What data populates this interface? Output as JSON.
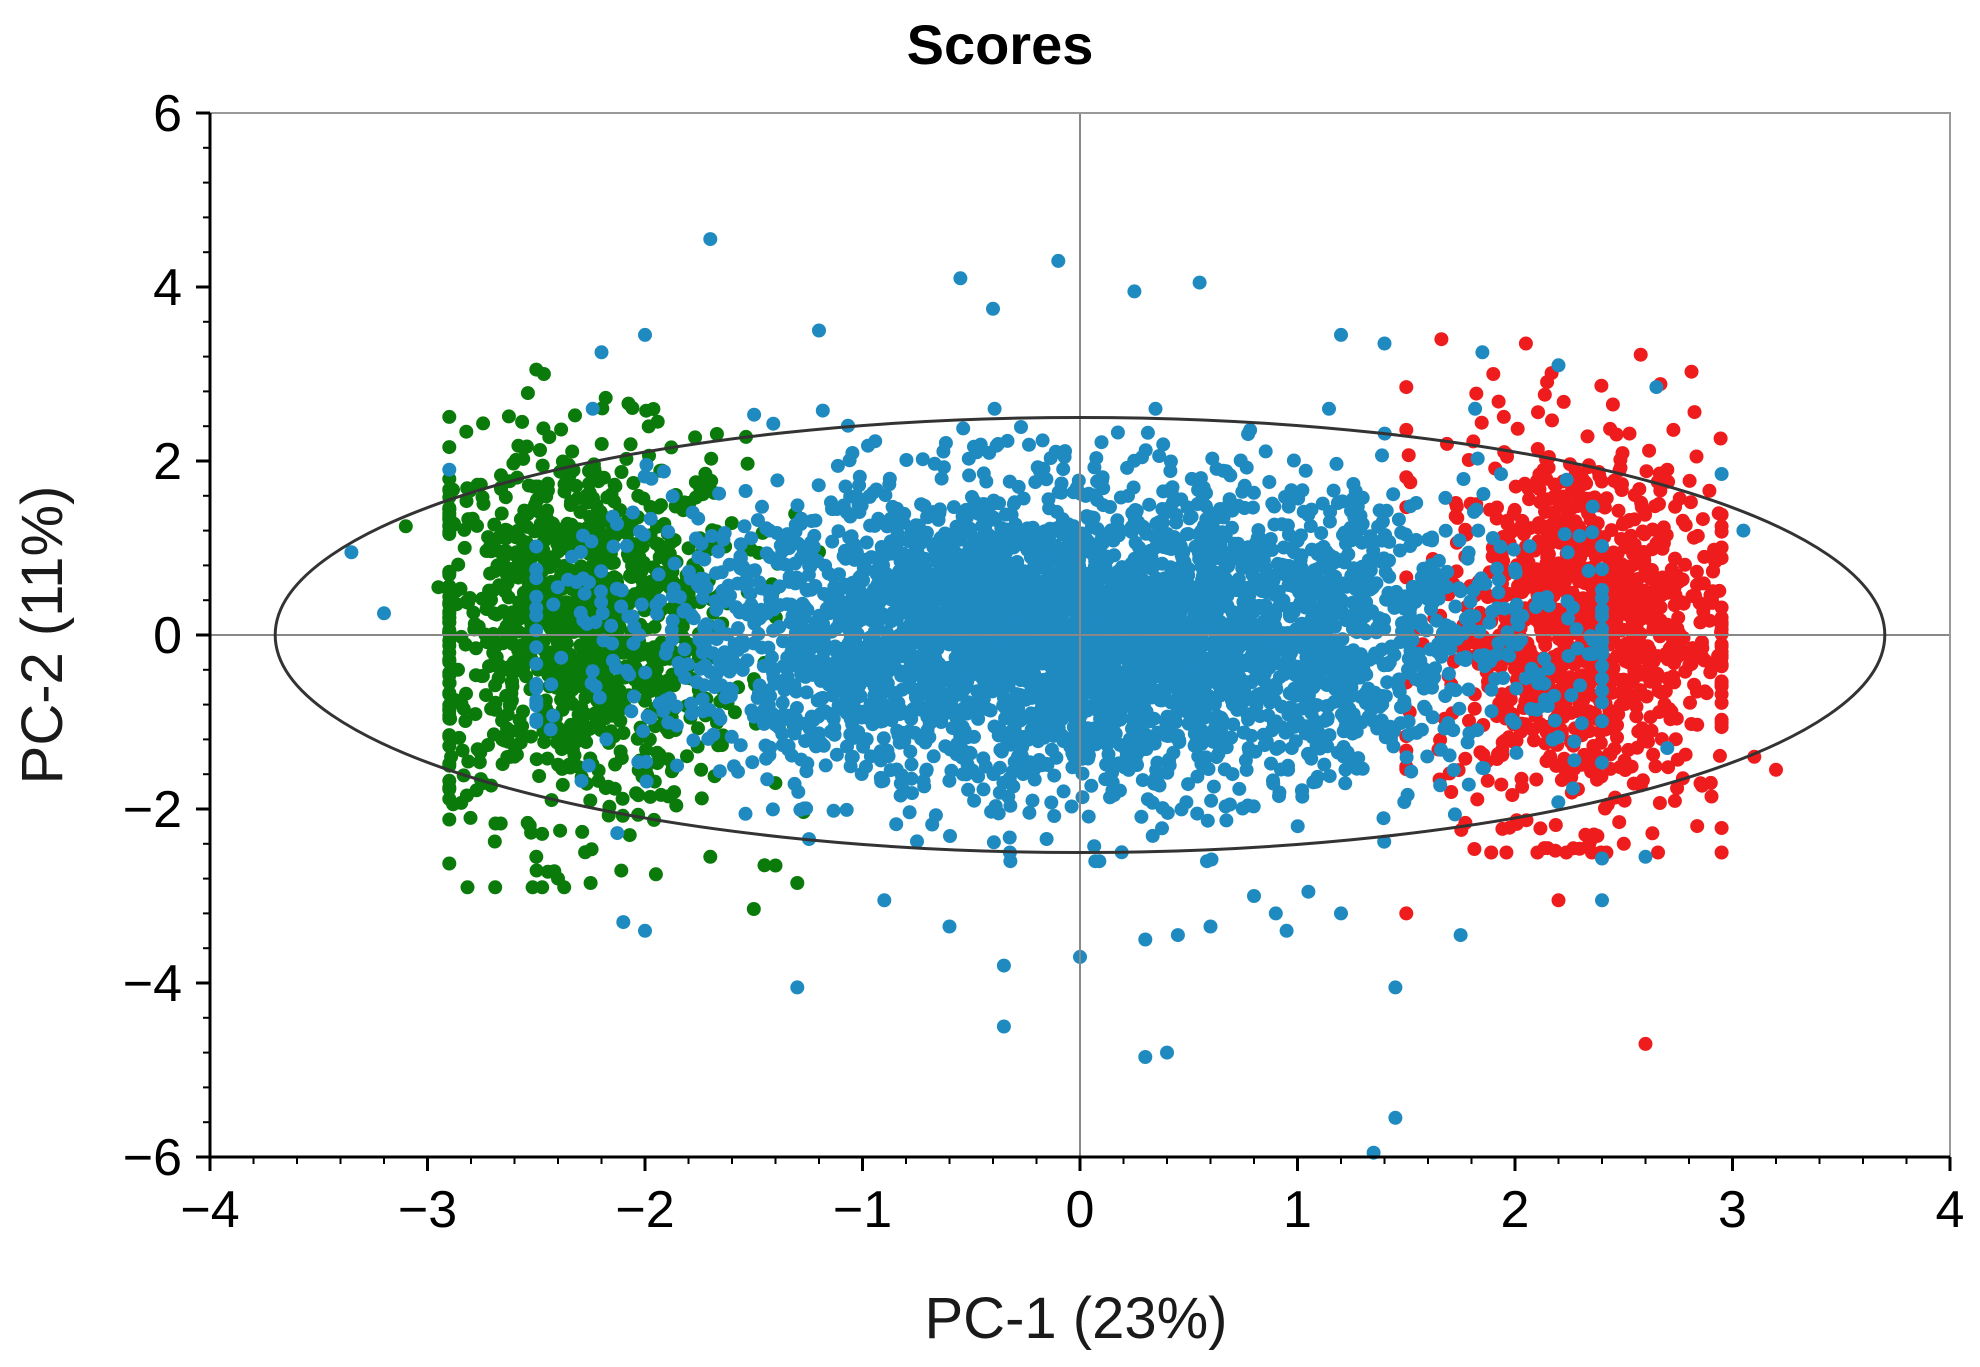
{
  "chart_data": {
    "type": "scatter",
    "title": "Scores",
    "xlabel": "PC-1 (23%)",
    "ylabel": "PC-2 (11%)",
    "xlim": [
      -4,
      4
    ],
    "ylim": [
      -6,
      6
    ],
    "x_ticks": [
      "−4",
      "−3",
      "−2",
      "−1",
      "0",
      "1",
      "2",
      "3",
      "4"
    ],
    "y_ticks": [
      "6",
      "4",
      "2",
      "0",
      "−2",
      "−4",
      "−6"
    ],
    "grid": false,
    "reference_lines": {
      "x": 0,
      "y": 0
    },
    "ellipse": {
      "center": [
        0,
        0
      ],
      "x_radius": 3.7,
      "y_radius": 2.5
    },
    "legend": "none",
    "series": [
      {
        "color": "#1f8ac0",
        "cluster_center": [
          0,
          0
        ],
        "cluster_x_range": [
          -2.5,
          2.4
        ],
        "cluster_y_range": [
          -2.6,
          2.6
        ],
        "values": [
          [
            -1.7,
            4.55
          ],
          [
            -0.1,
            4.3
          ],
          [
            0.55,
            4.05
          ],
          [
            -0.55,
            4.1
          ],
          [
            0.25,
            3.95
          ],
          [
            -0.4,
            3.75
          ],
          [
            -2.0,
            3.45
          ],
          [
            -2.2,
            3.25
          ],
          [
            -1.2,
            3.5
          ],
          [
            1.2,
            3.45
          ],
          [
            1.4,
            3.35
          ],
          [
            1.85,
            3.25
          ],
          [
            2.2,
            3.1
          ],
          [
            2.65,
            2.85
          ],
          [
            2.95,
            1.85
          ],
          [
            3.05,
            1.2
          ],
          [
            -3.35,
            0.95
          ],
          [
            -3.2,
            0.25
          ],
          [
            -2.9,
            1.9
          ],
          [
            2.7,
            -1.3
          ],
          [
            2.6,
            -2.55
          ],
          [
            2.4,
            -3.05
          ],
          [
            1.75,
            -3.45
          ],
          [
            1.45,
            -4.05
          ],
          [
            1.45,
            -5.55
          ],
          [
            1.35,
            -5.95
          ],
          [
            0.3,
            -4.85
          ],
          [
            0.4,
            -4.8
          ],
          [
            -0.35,
            -4.5
          ],
          [
            -1.3,
            -4.05
          ],
          [
            -2.1,
            -3.3
          ],
          [
            -2.0,
            -3.4
          ],
          [
            -0.35,
            -3.8
          ],
          [
            0.0,
            -3.7
          ],
          [
            0.45,
            -3.45
          ],
          [
            0.6,
            -3.35
          ],
          [
            0.95,
            -3.4
          ],
          [
            -0.6,
            -3.35
          ],
          [
            0.9,
            -3.2
          ],
          [
            0.3,
            -3.5
          ],
          [
            -0.9,
            -3.05
          ],
          [
            0.8,
            -3.0
          ],
          [
            1.05,
            -2.95
          ],
          [
            1.2,
            -3.2
          ]
        ]
      },
      {
        "color": "#0a7a0a",
        "cluster_center": [
          -2.3,
          0.1
        ],
        "cluster_x_range": [
          -2.9,
          -1.2
        ],
        "cluster_y_range": [
          -2.9,
          3.0
        ],
        "values": [
          [
            -2.5,
            3.05
          ],
          [
            -3.1,
            1.25
          ],
          [
            -2.95,
            0.55
          ],
          [
            -2.9,
            -1.15
          ],
          [
            -2.5,
            -2.55
          ],
          [
            -2.4,
            -2.8
          ],
          [
            -1.5,
            -3.15
          ],
          [
            -1.3,
            -2.85
          ],
          [
            -1.7,
            -2.55
          ],
          [
            -2.25,
            -2.85
          ],
          [
            -1.4,
            -2.65
          ],
          [
            -1.95,
            -2.75
          ]
        ]
      },
      {
        "color": "#ee1c1c",
        "cluster_center": [
          2.3,
          0.1
        ],
        "cluster_x_range": [
          1.5,
          2.95
        ],
        "cluster_y_range": [
          -2.5,
          3.4
        ],
        "values": [
          [
            2.05,
            3.35
          ],
          [
            1.9,
            3.0
          ],
          [
            1.5,
            2.85
          ],
          [
            2.45,
            2.65
          ],
          [
            2.7,
            1.9
          ],
          [
            2.95,
            0.2
          ],
          [
            3.1,
            -1.4
          ],
          [
            3.2,
            -1.55
          ],
          [
            2.9,
            -1.7
          ],
          [
            2.6,
            -4.7
          ],
          [
            2.2,
            -3.05
          ],
          [
            2.15,
            -2.45
          ],
          [
            2.35,
            -2.35
          ],
          [
            1.5,
            -3.2
          ],
          [
            2.5,
            -2.4
          ]
        ]
      }
    ]
  }
}
